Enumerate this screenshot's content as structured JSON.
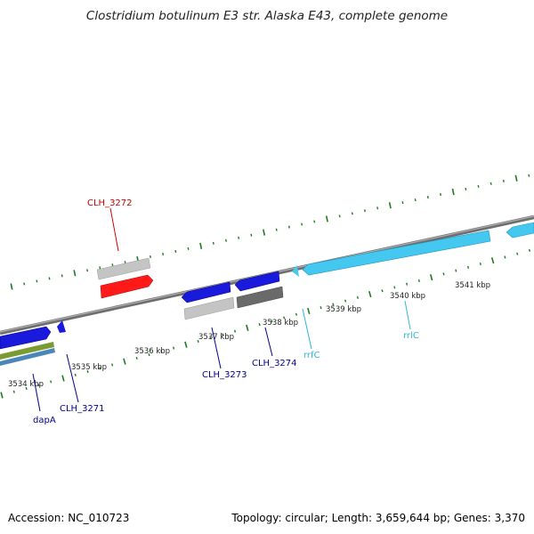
{
  "title": "Clostridium botulinum E3 str. Alaska E43, complete genome",
  "footer": {
    "accession": "Accession: NC_010723",
    "summary": "Topology: circular; Length: 3,659,644 bp; Genes: 3,370"
  },
  "colors": {
    "backbone": "#8a8a8a",
    "tick": "#1f7a1f",
    "cds_blue": "#1a1adc",
    "cds_red": "#ff1a1a",
    "rrna": "#45c8f0",
    "gray_light": "#c4c4c4",
    "gray_dark": "#6a6a6a",
    "olive": "#7a9a32",
    "steel": "#4a86b8",
    "label_red": "#cc0000",
    "label_blue": "#00008b",
    "label_cyan": "#2bb5d8"
  },
  "axis": {
    "labels": [
      "3534 kbp",
      "3535 kbp",
      "3536 kbp",
      "3537 kbp",
      "3538 kbp",
      "3539 kbp",
      "3540 kbp",
      "3541 kbp"
    ]
  },
  "genes": [
    {
      "name": "CLH_3272",
      "color": "label_red"
    },
    {
      "name": "CLH_3271",
      "color": "label_blue"
    },
    {
      "name": "dapA",
      "color": "label_blue"
    },
    {
      "name": "CLH_3273",
      "color": "label_blue"
    },
    {
      "name": "CLH_3274",
      "color": "label_blue"
    },
    {
      "name": "rrfC",
      "color": "label_cyan"
    },
    {
      "name": "rrlC",
      "color": "label_cyan"
    }
  ]
}
